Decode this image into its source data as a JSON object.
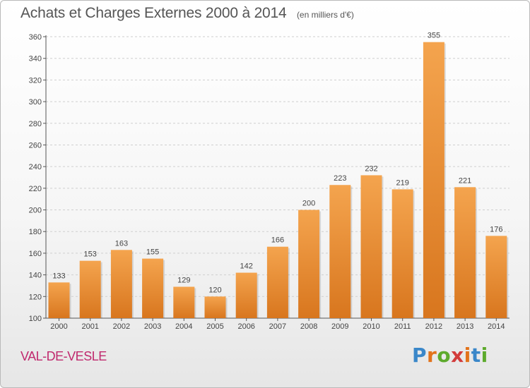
{
  "header": {
    "title": "Achats et Charges Externes 2000 à 2014",
    "unit": "(en milliers d'€)"
  },
  "footer": {
    "city": "VAL-DE-VESLE",
    "logo": [
      "P",
      "r",
      "o",
      "x",
      "i",
      "t",
      "i"
    ]
  },
  "colors": {
    "bar_top": "#f4a44e",
    "bar_bottom": "#d8761e",
    "title": "#555555",
    "city": "#c0296e",
    "logo": [
      "#3a87c9",
      "#e2731b",
      "#5daa2c",
      "#d23b3b",
      "#e2731b",
      "#3a87c9",
      "#5daa2c"
    ]
  },
  "chart_data": {
    "type": "bar",
    "title": "Achats et Charges Externes 2000 à 2014",
    "subtitle": "(en milliers d'€)",
    "categories": [
      "2000",
      "2001",
      "2002",
      "2003",
      "2004",
      "2005",
      "2006",
      "2007",
      "2008",
      "2009",
      "2010",
      "2011",
      "2012",
      "2013",
      "2014"
    ],
    "values": [
      133,
      153,
      163,
      155,
      129,
      120,
      142,
      166,
      200,
      223,
      232,
      219,
      355,
      221,
      176
    ],
    "ylim": [
      100,
      360
    ],
    "yticks": [
      100,
      120,
      140,
      160,
      180,
      200,
      220,
      240,
      260,
      280,
      300,
      320,
      340,
      360
    ],
    "grid": true,
    "legend": "none"
  }
}
